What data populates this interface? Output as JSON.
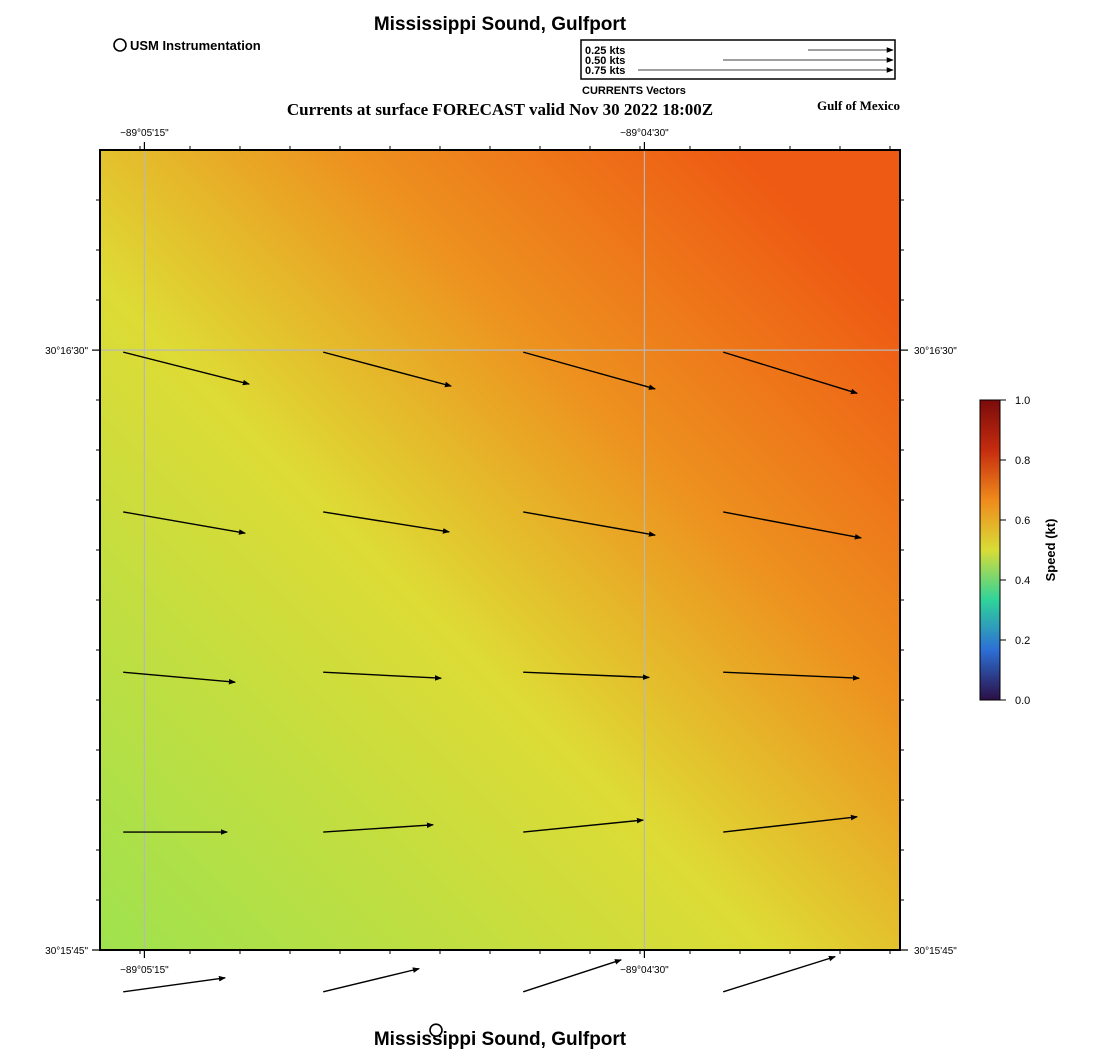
{
  "header": {
    "title": "Mississippi Sound, Gulfport",
    "footer_title": "Mississippi Sound, Gulfport",
    "subtitle": "Currents at surface FORECAST valid Nov 30 2022 18:00Z",
    "region_label": "Gulf of Mexico"
  },
  "station_legend": {
    "label": "USM Instrumentation"
  },
  "vector_legend": {
    "title": "CURRENTS Vectors",
    "entries": [
      {
        "label": "0.25 kts",
        "speed": 0.25
      },
      {
        "label": "0.50 kts",
        "speed": 0.5
      },
      {
        "label": "0.75 kts",
        "speed": 0.75
      }
    ]
  },
  "map": {
    "x_ticks": [
      {
        "label": "−89°05'15\"",
        "lon": -89.0875
      },
      {
        "label": "−89°04'30\"",
        "lon": -89.075
      }
    ],
    "y_ticks": [
      {
        "label": "30°16'30\"",
        "lat": 30.275
      },
      {
        "label": "30°15'45\"",
        "lat": 30.2625
      }
    ],
    "lon_range": [
      -89.08861,
      -89.06861
    ],
    "lat_range": [
      30.2625,
      30.27917
    ],
    "grid": true,
    "station": {
      "lon": -89.08021,
      "lat": 30.26083,
      "name": "USM Instrumentation"
    },
    "vectors": [
      {
        "lon": -89.08833,
        "lat": 30.275,
        "dx": 3.15,
        "dy": -0.8
      },
      {
        "lon": -89.08333,
        "lat": 30.275,
        "dx": 3.2,
        "dy": -0.85
      },
      {
        "lon": -89.07833,
        "lat": 30.275,
        "dx": 3.3,
        "dy": -0.92
      },
      {
        "lon": -89.07333,
        "lat": 30.275,
        "dx": 3.35,
        "dy": -1.03
      },
      {
        "lon": -89.08833,
        "lat": 30.27167,
        "dx": 3.05,
        "dy": -0.53
      },
      {
        "lon": -89.08333,
        "lat": 30.27167,
        "dx": 3.15,
        "dy": -0.5
      },
      {
        "lon": -89.07833,
        "lat": 30.27167,
        "dx": 3.3,
        "dy": -0.58
      },
      {
        "lon": -89.07333,
        "lat": 30.27167,
        "dx": 3.45,
        "dy": -0.65
      },
      {
        "lon": -89.08833,
        "lat": 30.26833,
        "dx": 2.8,
        "dy": -0.25
      },
      {
        "lon": -89.08333,
        "lat": 30.26833,
        "dx": 2.95,
        "dy": -0.15
      },
      {
        "lon": -89.07833,
        "lat": 30.26833,
        "dx": 3.15,
        "dy": -0.13
      },
      {
        "lon": -89.07333,
        "lat": 30.26833,
        "dx": 3.4,
        "dy": -0.15
      },
      {
        "lon": -89.08833,
        "lat": 30.265,
        "dx": 2.6,
        "dy": 0.0
      },
      {
        "lon": -89.08333,
        "lat": 30.265,
        "dx": 2.75,
        "dy": 0.18
      },
      {
        "lon": -89.07833,
        "lat": 30.265,
        "dx": 3.0,
        "dy": 0.3
      },
      {
        "lon": -89.07333,
        "lat": 30.265,
        "dx": 3.35,
        "dy": 0.38
      },
      {
        "lon": -89.08833,
        "lat": 30.26167,
        "dx": 2.55,
        "dy": 0.35
      },
      {
        "lon": -89.08333,
        "lat": 30.26167,
        "dx": 2.4,
        "dy": 0.58
      },
      {
        "lon": -89.07833,
        "lat": 30.26167,
        "dx": 2.45,
        "dy": 0.8
      },
      {
        "lon": -89.07333,
        "lat": 30.26167,
        "dx": 2.8,
        "dy": 0.88
      }
    ]
  },
  "colorbar": {
    "title": "Speed (kt)",
    "min": 0.0,
    "max": 1.0,
    "ticks": [
      {
        "value": 0.0,
        "label": "0.0"
      },
      {
        "value": 0.2,
        "label": "0.2"
      },
      {
        "value": 0.4,
        "label": "0.4"
      },
      {
        "value": 0.6,
        "label": "0.6"
      },
      {
        "value": 0.8,
        "label": "0.8"
      },
      {
        "value": 1.0,
        "label": "1.0"
      }
    ],
    "colors": [
      "#2b0f45",
      "#2d6fd6",
      "#2fd39a",
      "#d8dc37",
      "#f08a1c",
      "#c52c0e",
      "#7a0b0b"
    ]
  },
  "speed_field": {
    "colors": {
      "green": "#9fe24e",
      "yellow": "#dedb35",
      "orange": "#ed921f",
      "red_orange": "#ee5a13"
    }
  }
}
